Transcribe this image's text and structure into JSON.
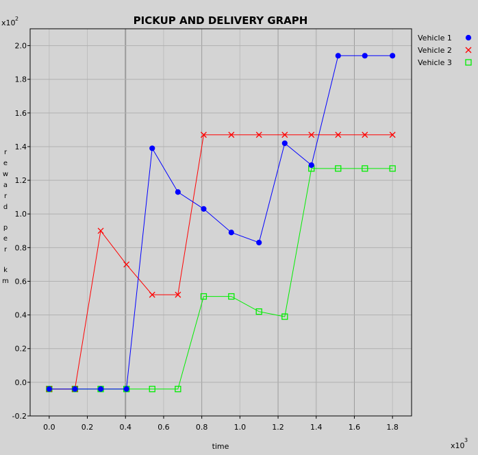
{
  "chart_data": {
    "type": "line",
    "title": "PICKUP AND DELIVERY GRAPH",
    "xlabel": "time",
    "ylabel": "reward per km",
    "x_multiplier": "x10",
    "x_multiplier_exp": "3",
    "y_multiplier": "x10",
    "y_multiplier_exp": "2",
    "xlim": [
      -0.1,
      1.9
    ],
    "ylim": [
      -0.2,
      2.1
    ],
    "x_ticks": [
      0.0,
      0.2,
      0.4,
      0.6,
      0.8,
      1.0,
      1.2,
      1.4,
      1.6,
      1.8
    ],
    "x_tick_labels": [
      "0.0",
      "0.2",
      "0.4",
      "0.6",
      "0.8",
      "1.0",
      "1.2",
      "1.4",
      "1.6",
      "1.8"
    ],
    "y_ticks": [
      -0.2,
      0.0,
      0.2,
      0.4,
      0.6,
      0.8,
      1.0,
      1.2,
      1.4,
      1.6,
      1.8,
      2.0
    ],
    "y_tick_labels": [
      "-0.2",
      "0.0",
      "0.2",
      "0.4",
      "0.6",
      "0.8",
      "1.0",
      "1.2",
      "1.4",
      "1.6",
      "1.8",
      "2.0"
    ],
    "grid": true,
    "legend_position": "top-right-outside",
    "x": [
      0.0,
      0.135,
      0.27,
      0.405,
      0.54,
      0.675,
      0.81,
      0.955,
      1.1,
      1.235,
      1.375,
      1.515,
      1.655,
      1.8
    ],
    "series": [
      {
        "name": "Vehicle 1",
        "color": "#0000ff",
        "marker": "circle",
        "values": [
          -0.04,
          -0.04,
          -0.04,
          -0.04,
          1.39,
          1.13,
          1.03,
          0.89,
          0.83,
          1.42,
          1.29,
          1.94,
          1.94,
          1.94
        ]
      },
      {
        "name": "Vehicle 2",
        "color": "#ff0000",
        "marker": "x",
        "values": [
          -0.04,
          -0.04,
          0.9,
          0.7,
          0.52,
          0.52,
          1.47,
          1.47,
          1.47,
          1.47,
          1.47,
          1.47,
          1.47,
          1.47
        ]
      },
      {
        "name": "Vehicle 3",
        "color": "#00ee00",
        "marker": "square",
        "values": [
          -0.04,
          -0.04,
          -0.04,
          -0.04,
          -0.04,
          -0.04,
          0.51,
          0.51,
          0.42,
          0.39,
          1.27,
          1.27,
          1.27,
          1.27
        ]
      }
    ]
  }
}
